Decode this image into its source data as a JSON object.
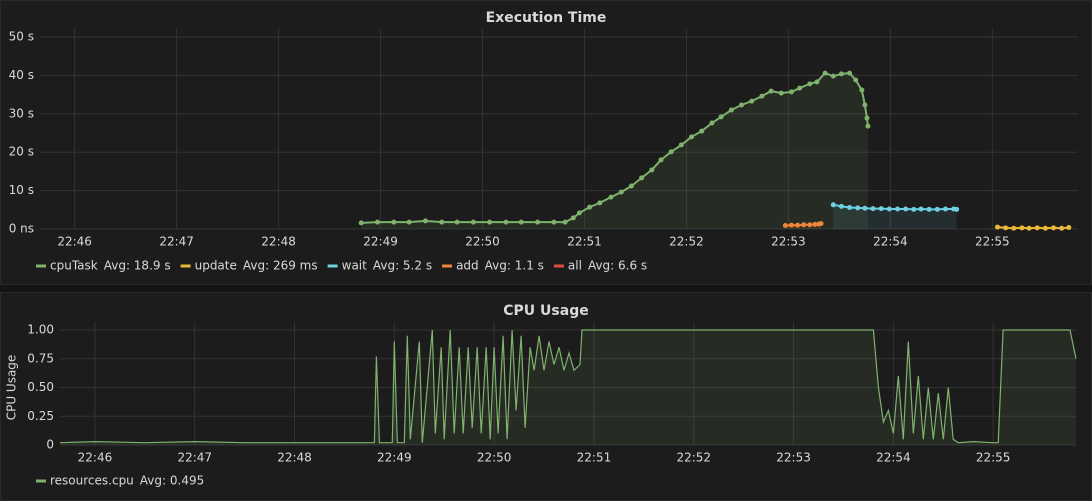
{
  "chart_data": [
    {
      "type": "line",
      "title": "Execution Time",
      "xlim": [
        1365.66,
        1375.84
      ],
      "xticks": [
        {
          "value": 1366,
          "label": "22:46"
        },
        {
          "value": 1367,
          "label": "22:47"
        },
        {
          "value": 1368,
          "label": "22:48"
        },
        {
          "value": 1369,
          "label": "22:49"
        },
        {
          "value": 1370,
          "label": "22:50"
        },
        {
          "value": 1371,
          "label": "22:51"
        },
        {
          "value": 1372,
          "label": "22:52"
        },
        {
          "value": 1373,
          "label": "22:53"
        },
        {
          "value": 1374,
          "label": "22:54"
        },
        {
          "value": 1375,
          "label": "22:55"
        }
      ],
      "ylim": [
        0,
        50
      ],
      "yticks": [
        {
          "value": 0,
          "label": "0 ns"
        },
        {
          "value": 10,
          "label": "10 s"
        },
        {
          "value": 20,
          "label": "20 s"
        },
        {
          "value": 30,
          "label": "30 s"
        },
        {
          "value": 40,
          "label": "40 s"
        },
        {
          "value": 50,
          "label": "50 s"
        }
      ],
      "grid": true,
      "points": true,
      "fill": true,
      "series": [
        {
          "name": "cpuTask",
          "legend_avg": "Avg: 18.9 s",
          "color": "#7eb26d",
          "x": [
            1368.81,
            1368.97,
            1369.13,
            1369.28,
            1369.44,
            1369.6,
            1369.75,
            1369.91,
            1370.07,
            1370.23,
            1370.38,
            1370.54,
            1370.7,
            1370.81,
            1370.89,
            1370.95,
            1371.05,
            1371.15,
            1371.26,
            1371.36,
            1371.46,
            1371.56,
            1371.66,
            1371.75,
            1371.85,
            1371.95,
            1372.05,
            1372.15,
            1372.25,
            1372.34,
            1372.44,
            1372.54,
            1372.64,
            1372.74,
            1372.83,
            1372.93,
            1373.03,
            1373.11,
            1373.21,
            1373.28,
            1373.36,
            1373.44,
            1373.52,
            1373.6,
            1373.66,
            1373.72,
            1373.75,
            1373.77,
            1373.78
          ],
          "values": [
            1.6,
            1.8,
            1.8,
            1.8,
            2.1,
            1.8,
            1.8,
            1.8,
            1.8,
            1.8,
            1.8,
            1.8,
            1.8,
            1.8,
            2.9,
            4.2,
            5.7,
            6.8,
            8.3,
            9.6,
            11.2,
            13.3,
            15.4,
            18.0,
            20.1,
            21.9,
            24.0,
            25.5,
            27.6,
            29.2,
            31.0,
            32.3,
            33.3,
            34.6,
            35.9,
            35.4,
            35.7,
            36.7,
            37.8,
            38.3,
            40.6,
            39.8,
            40.4,
            40.6,
            38.8,
            36.2,
            32.3,
            28.9,
            26.8
          ]
        },
        {
          "name": "update",
          "legend_avg": "Avg: 269 ms",
          "color": "#eab839",
          "x": [
            1375.05,
            1375.13,
            1375.21,
            1375.29,
            1375.36,
            1375.44,
            1375.52,
            1375.6,
            1375.68,
            1375.75
          ],
          "values": [
            0.5,
            0.3,
            0.2,
            0.3,
            0.2,
            0.3,
            0.2,
            0.3,
            0.2,
            0.4
          ]
        },
        {
          "name": "wait",
          "legend_avg": "Avg: 5.2 s",
          "color": "#6ed0e0",
          "x": [
            1373.44,
            1373.52,
            1373.6,
            1373.68,
            1373.75,
            1373.83,
            1373.91,
            1373.99,
            1374.07,
            1374.15,
            1374.23,
            1374.3,
            1374.38,
            1374.46,
            1374.54,
            1374.62,
            1374.65
          ],
          "values": [
            6.3,
            5.9,
            5.6,
            5.5,
            5.4,
            5.3,
            5.3,
            5.2,
            5.2,
            5.2,
            5.1,
            5.2,
            5.1,
            5.1,
            5.2,
            5.2,
            5.1
          ]
        },
        {
          "name": "add",
          "legend_avg": "Avg: 1.1 s",
          "color": "#ef843c",
          "x": [
            1372.97,
            1373.03,
            1373.09,
            1373.15,
            1373.21,
            1373.26,
            1373.3,
            1373.32
          ],
          "values": [
            0.9,
            1.0,
            1.0,
            1.1,
            1.1,
            1.2,
            1.3,
            1.4
          ]
        },
        {
          "name": "all",
          "legend_avg": "Avg: 6.6 s",
          "color": "#e24d42",
          "hidden": true,
          "x": [],
          "values": []
        }
      ]
    },
    {
      "type": "line",
      "title": "CPU Usage",
      "ylabel": "CPU Usage",
      "xlim": [
        1365.65,
        1375.83
      ],
      "xticks": [
        {
          "value": 1366,
          "label": "22:46"
        },
        {
          "value": 1367,
          "label": "22:47"
        },
        {
          "value": 1368,
          "label": "22:48"
        },
        {
          "value": 1369,
          "label": "22:49"
        },
        {
          "value": 1370,
          "label": "22:50"
        },
        {
          "value": 1371,
          "label": "22:51"
        },
        {
          "value": 1372,
          "label": "22:52"
        },
        {
          "value": 1373,
          "label": "22:53"
        },
        {
          "value": 1374,
          "label": "22:54"
        },
        {
          "value": 1375,
          "label": "22:55"
        }
      ],
      "ylim": [
        0,
        1
      ],
      "yticks": [
        0,
        0.25,
        {
          "value": 0.5,
          "label": "0.50"
        },
        0.75,
        {
          "value": 1,
          "label": "1.00"
        }
      ],
      "grid": true,
      "points": false,
      "fill": true,
      "series": [
        {
          "name": "resources.cpu",
          "legend_avg": "Avg: 0.495",
          "color": "#7eb26d",
          "x": [
            1365.65,
            1366.0,
            1366.5,
            1367.0,
            1367.5,
            1368.0,
            1368.5,
            1368.8,
            1368.82,
            1368.85,
            1368.98,
            1369.0,
            1369.03,
            1369.1,
            1369.13,
            1369.16,
            1369.25,
            1369.28,
            1369.38,
            1369.41,
            1369.47,
            1369.5,
            1369.56,
            1369.6,
            1369.65,
            1369.69,
            1369.74,
            1369.78,
            1369.83,
            1369.87,
            1369.92,
            1369.96,
            1370.0,
            1370.04,
            1370.09,
            1370.13,
            1370.18,
            1370.22,
            1370.27,
            1370.31,
            1370.36,
            1370.4,
            1370.45,
            1370.5,
            1370.55,
            1370.6,
            1370.65,
            1370.7,
            1370.75,
            1370.8,
            1370.86,
            1370.88,
            1371.5,
            1372.5,
            1373.5,
            1373.8,
            1373.85,
            1373.9,
            1373.95,
            1374.0,
            1374.05,
            1374.1,
            1374.15,
            1374.2,
            1374.25,
            1374.3,
            1374.35,
            1374.4,
            1374.45,
            1374.5,
            1374.55,
            1374.6,
            1374.65,
            1374.8,
            1375.0,
            1375.05,
            1375.1,
            1375.5,
            1375.77,
            1375.83
          ],
          "values": [
            0.02,
            0.03,
            0.02,
            0.03,
            0.02,
            0.02,
            0.02,
            0.02,
            0.77,
            0.02,
            0.02,
            0.9,
            0.02,
            0.02,
            0.95,
            0.05,
            0.9,
            0.02,
            1.0,
            0.1,
            0.85,
            0.05,
            1.0,
            0.1,
            0.85,
            0.1,
            0.85,
            0.15,
            0.85,
            0.1,
            0.85,
            0.05,
            0.85,
            0.1,
            0.95,
            0.05,
            1.0,
            0.3,
            0.95,
            0.15,
            0.85,
            0.65,
            0.95,
            0.65,
            0.9,
            0.7,
            0.85,
            0.65,
            0.8,
            0.65,
            0.7,
            1.0,
            1.0,
            1.0,
            1.0,
            1.0,
            0.5,
            0.2,
            0.3,
            0.1,
            0.6,
            0.05,
            0.9,
            0.1,
            0.6,
            0.05,
            0.5,
            0.05,
            0.45,
            0.05,
            0.5,
            0.05,
            0.02,
            0.03,
            0.02,
            0.02,
            1.0,
            1.0,
            1.0,
            0.75
          ]
        }
      ]
    }
  ]
}
